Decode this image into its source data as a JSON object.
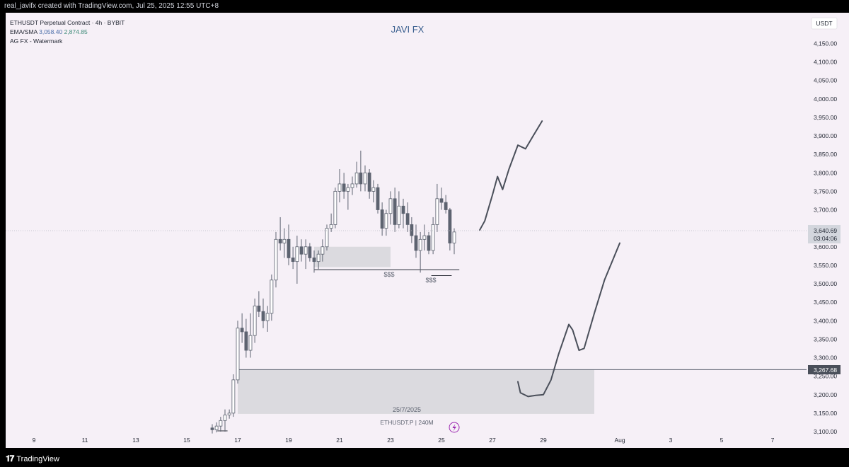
{
  "header": {
    "credit": "real_javifx created with TradingView.com, Jul 25, 2025 12:55 UTC+8"
  },
  "legend": {
    "symbol_line": "ETHUSDT Perpetual Contract · 4h · BYBIT",
    "ema_label": "EMA/SMA",
    "ema_value": "3,058.40",
    "sma_value": "2,874.85",
    "watermark_label": "AG FX - Watermark"
  },
  "watermark_title": "JAVI FX",
  "currency": "USDT",
  "footer": {
    "brand": "TradingView",
    "symbol_tag": "ETHUSDT.P | 240M",
    "date_label": "25/7/2025"
  },
  "price_badge": {
    "price": "3,640.69",
    "countdown": "03:04:06"
  },
  "level_badge": "3,267.68",
  "annotations": {
    "liquidity_left": "$$$",
    "liquidity_right": "$$$"
  },
  "colors": {
    "candle_outline": "#5d6370",
    "candle_up": "#ffffff",
    "candle_down": "#5d6370",
    "zone_fill": "#d6d6da",
    "path": "#4a4f5a",
    "badge_dark": "#4a4f5a"
  },
  "chart_data": {
    "type": "candlestick",
    "title": "JAVI FX",
    "ylabel": "USDT",
    "ylim": [
      3090,
      4200
    ],
    "y_ticks": [
      "4,150.00",
      "4,100.00",
      "4,050.00",
      "4,000.00",
      "3,950.00",
      "3,900.00",
      "3,850.00",
      "3,800.00",
      "3,750.00",
      "3,700.00",
      "3,650.00",
      "3,600.00",
      "3,550.00",
      "3,500.00",
      "3,450.00",
      "3,400.00",
      "3,350.00",
      "3,300.00",
      "3,250.00",
      "3,200.00",
      "3,150.00",
      "3,100.00"
    ],
    "y_tick_values": [
      4150,
      4100,
      4050,
      4000,
      3950,
      3900,
      3850,
      3800,
      3750,
      3700,
      3650,
      3600,
      3550,
      3500,
      3450,
      3400,
      3350,
      3300,
      3250,
      3200,
      3150,
      3100
    ],
    "x_ticks": [
      "9",
      "11",
      "13",
      "15",
      "17",
      "19",
      "21",
      "23",
      "25",
      "27",
      "29",
      "Aug",
      "3",
      "5",
      "7"
    ],
    "x_tick_days": [
      9,
      11,
      13,
      15,
      17,
      19,
      21,
      23,
      25,
      27,
      29,
      32,
      34,
      36,
      38
    ],
    "candles": [
      {
        "t": 16.0,
        "o": 3110,
        "h": 3120,
        "l": 3095,
        "c": 3105
      },
      {
        "t": 16.17,
        "o": 3105,
        "h": 3125,
        "l": 3098,
        "c": 3115
      },
      {
        "t": 16.33,
        "o": 3115,
        "h": 3140,
        "l": 3100,
        "c": 3130
      },
      {
        "t": 16.5,
        "o": 3130,
        "h": 3160,
        "l": 3100,
        "c": 3145
      },
      {
        "t": 16.67,
        "o": 3145,
        "h": 3160,
        "l": 3135,
        "c": 3150
      },
      {
        "t": 16.83,
        "o": 3150,
        "h": 3255,
        "l": 3140,
        "c": 3240
      },
      {
        "t": 17.0,
        "o": 3240,
        "h": 3400,
        "l": 3230,
        "c": 3380
      },
      {
        "t": 17.17,
        "o": 3380,
        "h": 3420,
        "l": 3340,
        "c": 3370
      },
      {
        "t": 17.33,
        "o": 3370,
        "h": 3405,
        "l": 3300,
        "c": 3320
      },
      {
        "t": 17.5,
        "o": 3320,
        "h": 3420,
        "l": 3300,
        "c": 3360
      },
      {
        "t": 17.67,
        "o": 3360,
        "h": 3460,
        "l": 3340,
        "c": 3440
      },
      {
        "t": 17.83,
        "o": 3440,
        "h": 3480,
        "l": 3410,
        "c": 3425
      },
      {
        "t": 18.0,
        "o": 3425,
        "h": 3460,
        "l": 3380,
        "c": 3400
      },
      {
        "t": 18.17,
        "o": 3400,
        "h": 3440,
        "l": 3370,
        "c": 3420
      },
      {
        "t": 18.33,
        "o": 3420,
        "h": 3525,
        "l": 3400,
        "c": 3510
      },
      {
        "t": 18.5,
        "o": 3510,
        "h": 3640,
        "l": 3490,
        "c": 3620
      },
      {
        "t": 18.67,
        "o": 3620,
        "h": 3680,
        "l": 3590,
        "c": 3610
      },
      {
        "t": 18.83,
        "o": 3610,
        "h": 3650,
        "l": 3570,
        "c": 3620
      },
      {
        "t": 19.0,
        "o": 3620,
        "h": 3660,
        "l": 3550,
        "c": 3570
      },
      {
        "t": 19.17,
        "o": 3570,
        "h": 3600,
        "l": 3540,
        "c": 3560
      },
      {
        "t": 19.33,
        "o": 3560,
        "h": 3630,
        "l": 3500,
        "c": 3600
      },
      {
        "t": 19.5,
        "o": 3600,
        "h": 3620,
        "l": 3560,
        "c": 3580
      },
      {
        "t": 19.67,
        "o": 3580,
        "h": 3620,
        "l": 3540,
        "c": 3600
      },
      {
        "t": 19.83,
        "o": 3600,
        "h": 3610,
        "l": 3560,
        "c": 3570
      },
      {
        "t": 20.0,
        "o": 3570,
        "h": 3590,
        "l": 3530,
        "c": 3560
      },
      {
        "t": 20.17,
        "o": 3560,
        "h": 3590,
        "l": 3540,
        "c": 3580
      },
      {
        "t": 20.33,
        "o": 3580,
        "h": 3620,
        "l": 3560,
        "c": 3600
      },
      {
        "t": 20.5,
        "o": 3600,
        "h": 3660,
        "l": 3590,
        "c": 3650
      },
      {
        "t": 20.67,
        "o": 3650,
        "h": 3690,
        "l": 3640,
        "c": 3660
      },
      {
        "t": 20.83,
        "o": 3660,
        "h": 3760,
        "l": 3650,
        "c": 3750
      },
      {
        "t": 21.0,
        "o": 3750,
        "h": 3810,
        "l": 3720,
        "c": 3770
      },
      {
        "t": 21.17,
        "o": 3770,
        "h": 3800,
        "l": 3730,
        "c": 3750
      },
      {
        "t": 21.33,
        "o": 3750,
        "h": 3770,
        "l": 3700,
        "c": 3760
      },
      {
        "t": 21.5,
        "o": 3760,
        "h": 3790,
        "l": 3740,
        "c": 3770
      },
      {
        "t": 21.67,
        "o": 3770,
        "h": 3830,
        "l": 3760,
        "c": 3800
      },
      {
        "t": 21.83,
        "o": 3800,
        "h": 3860,
        "l": 3750,
        "c": 3770
      },
      {
        "t": 22.0,
        "o": 3770,
        "h": 3820,
        "l": 3750,
        "c": 3800
      },
      {
        "t": 22.17,
        "o": 3800,
        "h": 3810,
        "l": 3730,
        "c": 3750
      },
      {
        "t": 22.33,
        "o": 3750,
        "h": 3780,
        "l": 3720,
        "c": 3760
      },
      {
        "t": 22.5,
        "o": 3760,
        "h": 3770,
        "l": 3690,
        "c": 3700
      },
      {
        "t": 22.67,
        "o": 3700,
        "h": 3720,
        "l": 3630,
        "c": 3650
      },
      {
        "t": 22.83,
        "o": 3650,
        "h": 3700,
        "l": 3630,
        "c": 3690
      },
      {
        "t": 23.0,
        "o": 3690,
        "h": 3750,
        "l": 3660,
        "c": 3730
      },
      {
        "t": 23.17,
        "o": 3730,
        "h": 3760,
        "l": 3640,
        "c": 3660
      },
      {
        "t": 23.33,
        "o": 3660,
        "h": 3750,
        "l": 3650,
        "c": 3710
      },
      {
        "t": 23.5,
        "o": 3710,
        "h": 3730,
        "l": 3650,
        "c": 3690
      },
      {
        "t": 23.67,
        "o": 3690,
        "h": 3720,
        "l": 3640,
        "c": 3660
      },
      {
        "t": 23.83,
        "o": 3660,
        "h": 3680,
        "l": 3610,
        "c": 3630
      },
      {
        "t": 24.0,
        "o": 3630,
        "h": 3660,
        "l": 3570,
        "c": 3590
      },
      {
        "t": 24.17,
        "o": 3590,
        "h": 3640,
        "l": 3530,
        "c": 3620
      },
      {
        "t": 24.33,
        "o": 3620,
        "h": 3660,
        "l": 3590,
        "c": 3630
      },
      {
        "t": 24.5,
        "o": 3630,
        "h": 3640,
        "l": 3580,
        "c": 3590
      },
      {
        "t": 24.67,
        "o": 3590,
        "h": 3680,
        "l": 3580,
        "c": 3660
      },
      {
        "t": 24.83,
        "o": 3660,
        "h": 3770,
        "l": 3640,
        "c": 3730
      },
      {
        "t": 25.0,
        "o": 3730,
        "h": 3760,
        "l": 3700,
        "c": 3720
      },
      {
        "t": 25.17,
        "o": 3720,
        "h": 3740,
        "l": 3690,
        "c": 3700
      },
      {
        "t": 25.33,
        "o": 3700,
        "h": 3705,
        "l": 3590,
        "c": 3610
      },
      {
        "t": 25.5,
        "o": 3610,
        "h": 3650,
        "l": 3580,
        "c": 3640
      }
    ],
    "zones": [
      {
        "x0": 20.0,
        "x1": 23.0,
        "y0": 3545,
        "y1": 3600
      },
      {
        "x0": 17.0,
        "x1": 31.0,
        "y0": 3148,
        "y1": 3267.68
      }
    ],
    "lines": [
      {
        "type": "horizontal",
        "y": 3267.68,
        "x0": 17.0
      },
      {
        "type": "segment",
        "x0": 20.0,
        "x1": 25.7,
        "y": 3538
      },
      {
        "type": "segment",
        "x0": 24.6,
        "x1": 25.4,
        "y": 3522
      },
      {
        "type": "segment",
        "x0": 16.2,
        "x1": 16.6,
        "y": 3102
      }
    ],
    "projection_upper": [
      [
        26.5,
        3645
      ],
      [
        26.7,
        3670
      ],
      [
        27.0,
        3740
      ],
      [
        27.2,
        3790
      ],
      [
        27.4,
        3755
      ],
      [
        27.65,
        3810
      ],
      [
        28.0,
        3875
      ],
      [
        28.3,
        3865
      ],
      [
        28.6,
        3900
      ],
      [
        28.95,
        3940
      ]
    ],
    "projection_lower": [
      [
        28.0,
        3235
      ],
      [
        28.1,
        3205
      ],
      [
        28.4,
        3195
      ],
      [
        28.7,
        3198
      ],
      [
        29.0,
        3200
      ],
      [
        29.3,
        3240
      ],
      [
        29.6,
        3310
      ],
      [
        30.0,
        3390
      ],
      [
        30.15,
        3375
      ],
      [
        30.4,
        3320
      ],
      [
        30.6,
        3325
      ],
      [
        31.0,
        3420
      ],
      [
        31.4,
        3510
      ],
      [
        32.0,
        3610
      ]
    ]
  }
}
